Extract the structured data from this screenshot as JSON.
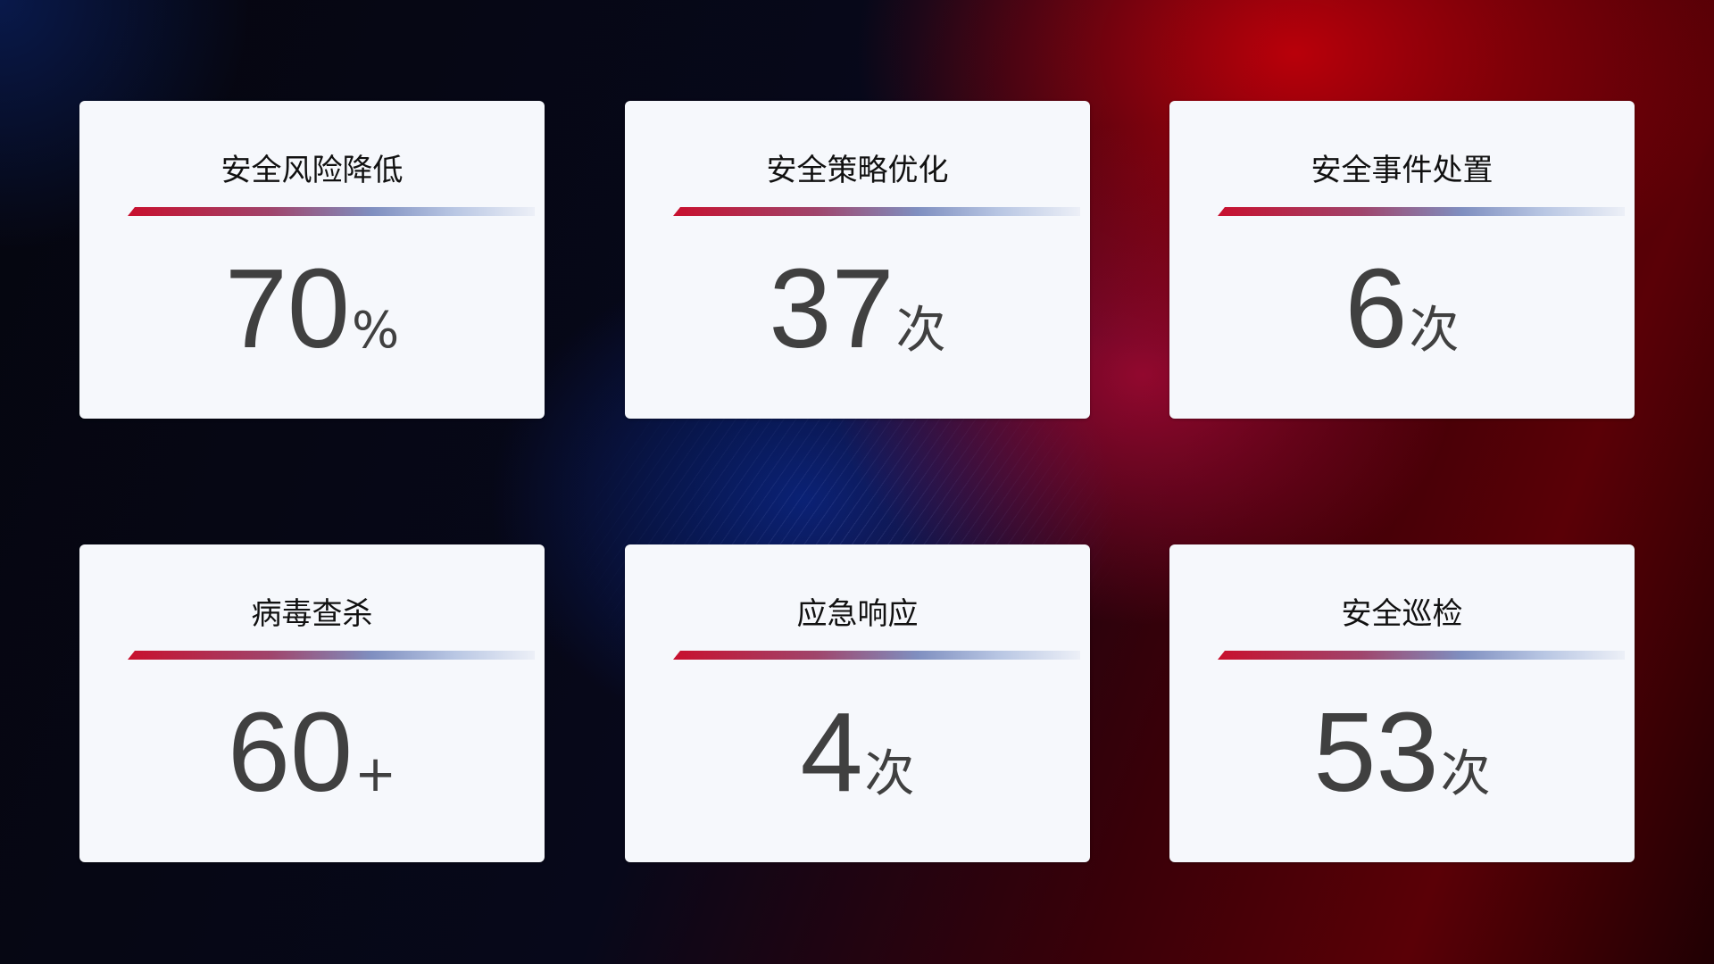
{
  "cards": [
    {
      "title": "安全风险降低",
      "value": "70",
      "unit": "%"
    },
    {
      "title": "安全策略优化",
      "value": "37",
      "unit": "次"
    },
    {
      "title": "安全事件处置",
      "value": "6",
      "unit": "次"
    },
    {
      "title": "病毒查杀",
      "value": "60",
      "unit": "+"
    },
    {
      "title": "应急响应",
      "value": "4",
      "unit": "次"
    },
    {
      "title": "安全巡检",
      "value": "53",
      "unit": "次"
    }
  ],
  "colors": {
    "accent_red": "#c8102e",
    "accent_blue": "#7f8fc0",
    "card_bg": "#f6f8fc",
    "value_text": "#404040"
  }
}
